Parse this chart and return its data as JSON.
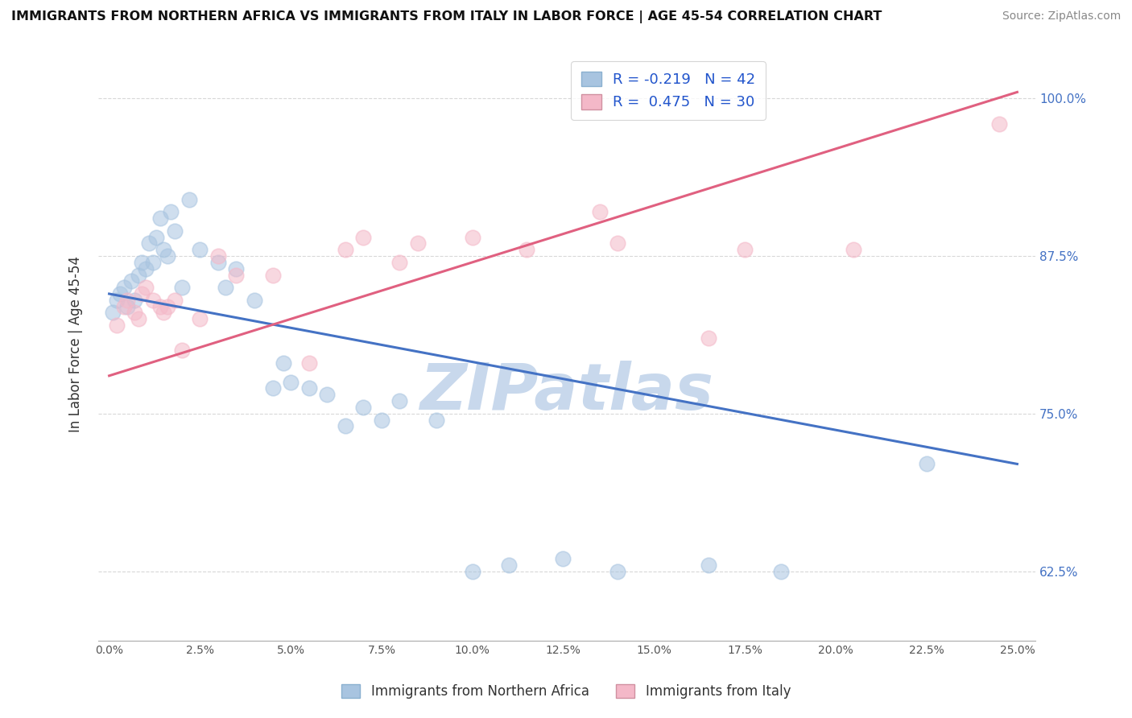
{
  "title": "IMMIGRANTS FROM NORTHERN AFRICA VS IMMIGRANTS FROM ITALY IN LABOR FORCE | AGE 45-54 CORRELATION CHART",
  "source": "Source: ZipAtlas.com",
  "xlabel_vals": [
    0.0,
    2.5,
    5.0,
    7.5,
    10.0,
    12.5,
    15.0,
    17.5,
    20.0,
    22.5,
    25.0
  ],
  "ylabel": "In Labor Force | Age 45-54",
  "ylabel_vals": [
    62.5,
    75.0,
    87.5,
    100.0
  ],
  "xlim": [
    -0.3,
    25.5
  ],
  "ylim": [
    57.0,
    104.0
  ],
  "legend1_label": "R = -0.219   N = 42",
  "legend2_label": "R =  0.475   N = 30",
  "blue_color": "#a8c4e0",
  "pink_color": "#f4b8c8",
  "blue_line_color": "#4472c4",
  "pink_line_color": "#e06080",
  "blue_scatter_x": [
    0.1,
    0.2,
    0.3,
    0.4,
    0.5,
    0.6,
    0.7,
    0.8,
    0.9,
    1.0,
    1.1,
    1.2,
    1.3,
    1.4,
    1.5,
    1.6,
    1.7,
    1.8,
    2.0,
    2.2,
    2.5,
    3.0,
    3.2,
    3.5,
    4.0,
    4.5,
    4.8,
    5.0,
    5.5,
    6.0,
    6.5,
    7.0,
    7.5,
    8.0,
    9.0,
    10.0,
    11.0,
    12.5,
    14.0,
    16.5,
    18.5,
    22.5
  ],
  "blue_scatter_y": [
    83.0,
    84.0,
    84.5,
    85.0,
    83.5,
    85.5,
    84.0,
    86.0,
    87.0,
    86.5,
    88.5,
    87.0,
    89.0,
    90.5,
    88.0,
    87.5,
    91.0,
    89.5,
    85.0,
    92.0,
    88.0,
    87.0,
    85.0,
    86.5,
    84.0,
    77.0,
    79.0,
    77.5,
    77.0,
    76.5,
    74.0,
    75.5,
    74.5,
    76.0,
    74.5,
    62.5,
    63.0,
    63.5,
    62.5,
    63.0,
    62.5,
    71.0
  ],
  "pink_scatter_x": [
    0.2,
    0.4,
    0.5,
    0.7,
    0.8,
    0.9,
    1.0,
    1.2,
    1.4,
    1.5,
    1.6,
    1.8,
    2.0,
    2.5,
    3.0,
    3.5,
    4.5,
    5.5,
    6.5,
    7.0,
    8.0,
    8.5,
    10.0,
    11.5,
    13.5,
    14.0,
    16.5,
    17.5,
    20.5,
    24.5
  ],
  "pink_scatter_y": [
    82.0,
    83.5,
    84.0,
    83.0,
    82.5,
    84.5,
    85.0,
    84.0,
    83.5,
    83.0,
    83.5,
    84.0,
    80.0,
    82.5,
    87.5,
    86.0,
    86.0,
    79.0,
    88.0,
    89.0,
    87.0,
    88.5,
    89.0,
    88.0,
    91.0,
    88.5,
    81.0,
    88.0,
    88.0,
    98.0
  ],
  "blue_line_x": [
    0.0,
    25.0
  ],
  "blue_line_y": [
    84.5,
    71.0
  ],
  "pink_line_x": [
    0.0,
    25.0
  ],
  "pink_line_y": [
    78.0,
    100.5
  ],
  "watermark": "ZIPatlas",
  "watermark_color": "#c8d8ec",
  "background_color": "#ffffff",
  "grid_color": "#d8d8d8"
}
